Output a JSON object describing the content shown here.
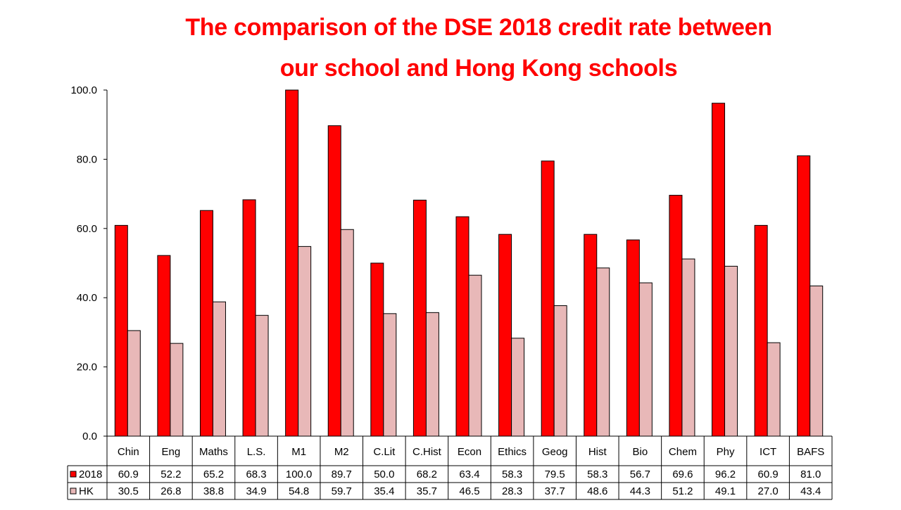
{
  "chart_data": {
    "type": "bar",
    "title_lines": [
      "The comparison of the DSE 2018 credit rate between",
      "our school and Hong Kong schools"
    ],
    "categories": [
      "Chin",
      "Eng",
      "Maths",
      "L.S.",
      "M1",
      "M2",
      "C.Lit",
      "C.Hist",
      "Econ",
      "Ethics",
      "Geog",
      "Hist",
      "Bio",
      "Chem",
      "Phy",
      "ICT",
      "BAFS"
    ],
    "series": [
      {
        "name": "2018",
        "color": "#ff0000",
        "values": [
          60.9,
          52.2,
          65.2,
          68.3,
          100.0,
          89.7,
          50.0,
          68.2,
          63.4,
          58.3,
          79.5,
          58.3,
          56.7,
          69.6,
          96.2,
          60.9,
          81.0
        ],
        "labels": [
          "60.9",
          "52.2",
          "65.2",
          "68.3",
          "100.0",
          "89.7",
          "50.0",
          "68.2",
          "63.4",
          "58.3",
          "79.5",
          "58.3",
          "56.7",
          "69.6",
          "96.2",
          "60.9",
          "81.0"
        ]
      },
      {
        "name": "HK",
        "color": "#e8b8b8",
        "values": [
          30.5,
          26.8,
          38.8,
          34.9,
          54.8,
          59.7,
          35.4,
          35.7,
          46.5,
          28.3,
          37.7,
          48.6,
          44.3,
          51.2,
          49.1,
          27.0,
          43.4
        ],
        "labels": [
          "30.5",
          "26.8",
          "38.8",
          "34.9",
          "54.8",
          "59.7",
          "35.4",
          "35.7",
          "46.5",
          "28.3",
          "37.7",
          "48.6",
          "44.3",
          "51.2",
          "49.1",
          "27.0",
          "43.4"
        ]
      }
    ],
    "ylim": [
      0,
      100
    ],
    "yticks": [
      "0.0",
      "20.0",
      "40.0",
      "60.0",
      "80.0",
      "100.0"
    ],
    "grid": false,
    "legend": "data table"
  }
}
